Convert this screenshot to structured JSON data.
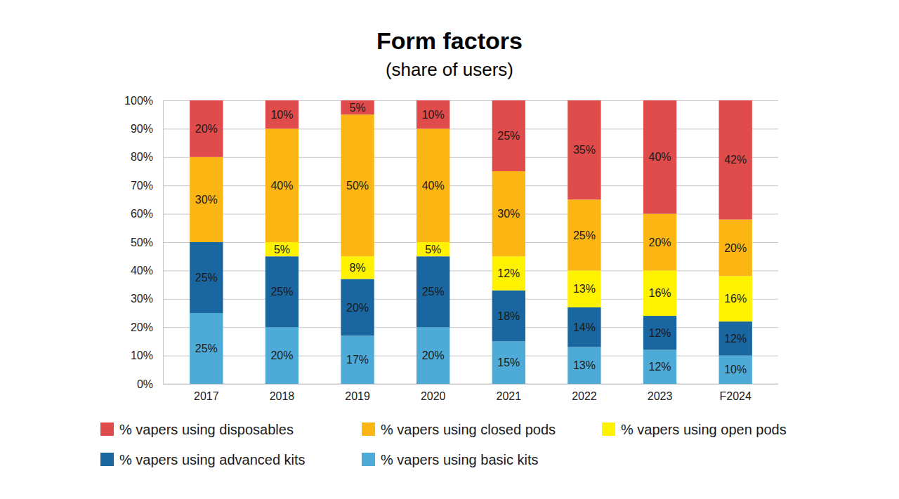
{
  "chart_data": {
    "type": "bar",
    "title": "Form factors",
    "subtitle": "(share of users)",
    "stacked": true,
    "data_labels": true,
    "grid": true,
    "legend": "bottom",
    "categories": [
      "2017",
      "2018",
      "2019",
      "2020",
      "2021",
      "2022",
      "2023",
      "F2024"
    ],
    "ylim": [
      0,
      100
    ],
    "yticks": [
      {
        "value": 0,
        "label": "0%"
      },
      {
        "value": 10,
        "label": "10%"
      },
      {
        "value": 20,
        "label": "20%"
      },
      {
        "value": 30,
        "label": "30%"
      },
      {
        "value": 40,
        "label": "40%"
      },
      {
        "value": 50,
        "label": "50%"
      },
      {
        "value": 60,
        "label": "60%"
      },
      {
        "value": 70,
        "label": "70%"
      },
      {
        "value": 80,
        "label": "80%"
      },
      {
        "value": 90,
        "label": "90%"
      },
      {
        "value": 100,
        "label": "100%"
      }
    ],
    "series": [
      {
        "name": "% vapers using disposables",
        "color": "#e04b4b",
        "values": [
          20,
          10,
          5,
          10,
          25,
          35,
          40,
          42
        ],
        "value_labels": [
          "20%",
          "10%",
          "5%",
          "10%",
          "25%",
          "35%",
          "40%",
          "42%"
        ]
      },
      {
        "name": "% vapers using closed pods",
        "color": "#fbb614",
        "values": [
          30,
          40,
          50,
          40,
          30,
          25,
          20,
          20
        ],
        "value_labels": [
          "30%",
          "40%",
          "50%",
          "40%",
          "30%",
          "25%",
          "20%",
          "20%"
        ]
      },
      {
        "name": "% vapers using open pods",
        "color": "#fff200",
        "values": [
          null,
          5,
          8,
          5,
          12,
          13,
          16,
          16
        ],
        "value_labels": [
          null,
          "5%",
          "8%",
          "5%",
          "12%",
          "13%",
          "16%",
          "16%"
        ]
      },
      {
        "name": "% vapers using advanced kits",
        "color": "#1a66a0",
        "values": [
          25,
          25,
          20,
          25,
          18,
          14,
          12,
          12
        ],
        "value_labels": [
          "25%",
          "25%",
          "20%",
          "25%",
          "18%",
          "14%",
          "12%",
          "12%"
        ]
      },
      {
        "name": "% vapers using basic kits",
        "color": "#4eabd7",
        "values": [
          25,
          20,
          17,
          20,
          15,
          13,
          12,
          10
        ],
        "value_labels": [
          "25%",
          "20%",
          "17%",
          "20%",
          "15%",
          "13%",
          "12%",
          "10%"
        ]
      }
    ]
  }
}
